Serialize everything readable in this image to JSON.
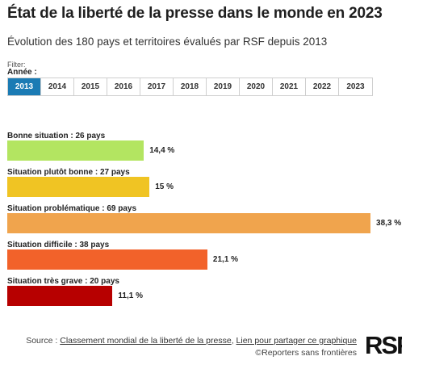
{
  "title": "État de la liberté de la presse dans le monde en 2023",
  "subtitle": "Évolution des 180 pays et territoires évalués par RSF depuis 2013",
  "filter": {
    "label": "Filter:",
    "annee_label": "Année :",
    "years": [
      "2013",
      "2014",
      "2015",
      "2016",
      "2017",
      "2018",
      "2019",
      "2020",
      "2021",
      "2022",
      "2023"
    ],
    "selected": "2013"
  },
  "chart_data": {
    "type": "bar",
    "orientation": "horizontal",
    "categories": [
      "Bonne situation : 26 pays",
      "Situation plutôt bonne : 27 pays",
      "Situation problématique : 69 pays",
      "Situation difficile : 38 pays",
      "Situation très grave : 20 pays"
    ],
    "values": [
      14.4,
      15,
      38.3,
      21.1,
      11.1
    ],
    "value_labels": [
      "14,4 %",
      "15 %",
      "38,3 %",
      "21,1 %",
      "11,1 %"
    ],
    "colors": [
      "#b3e561",
      "#f0c423",
      "#f0a44d",
      "#f2622a",
      "#b70000"
    ],
    "xlim": [
      0,
      40
    ],
    "grid": false
  },
  "footer": {
    "source_prefix": "Source : ",
    "source_link": "Classement mondial de la liberté de la presse",
    "separator": ", ",
    "share_link": "Lien pour partager ce graphique",
    "copyright": "©Reporters sans frontières"
  },
  "logo": {
    "text": "RSF",
    "icon": "rsf-logo"
  }
}
